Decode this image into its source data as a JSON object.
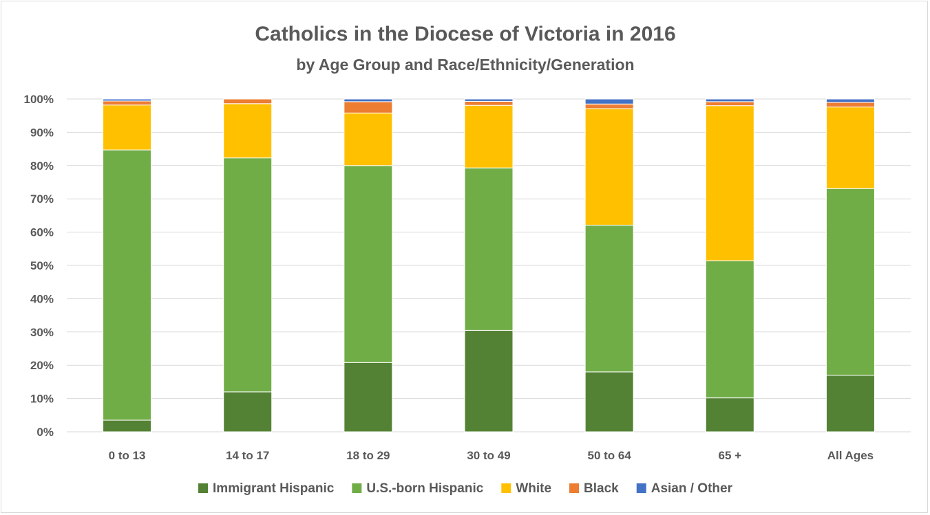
{
  "chart_data": {
    "type": "bar",
    "stacked": true,
    "title": "Catholics in the Diocese of Victoria in 2016",
    "subtitle": "by Age Group and Race/Ethnicity/Generation",
    "categories": [
      "0 to 13",
      "14 to 17",
      "18 to 29",
      "30 to 49",
      "50 to 64",
      "65 +",
      "All Ages"
    ],
    "ylim": [
      0,
      100
    ],
    "yticks": [
      "0%",
      "10%",
      "20%",
      "30%",
      "40%",
      "50%",
      "60%",
      "70%",
      "80%",
      "90%",
      "100%"
    ],
    "grid": true,
    "legend_position": "bottom",
    "series": [
      {
        "name": "Immigrant Hispanic",
        "color": "#548235",
        "values": [
          3.5,
          12,
          20.8,
          30.5,
          18,
          10.2,
          17
        ]
      },
      {
        "name": "U.S.-born Hispanic",
        "color": "#70ad47",
        "values": [
          81.2,
          70.3,
          59.2,
          48.8,
          44.1,
          41.2,
          56.1
        ]
      },
      {
        "name": "White",
        "color": "#ffc000",
        "values": [
          13.5,
          16.3,
          15.8,
          18.8,
          35,
          46.6,
          24.5
        ]
      },
      {
        "name": "Black",
        "color": "#ed7d31",
        "values": [
          1.2,
          1.4,
          3.4,
          1.2,
          1.4,
          1.2,
          1.4
        ]
      },
      {
        "name": "Asian / Other",
        "color": "#4472c4",
        "values": [
          0.6,
          0,
          0.8,
          0.7,
          1.5,
          0.8,
          1
        ]
      }
    ]
  },
  "colors": {
    "text": "#595959",
    "gridline": "#d9d9d9",
    "border": "#d9d9d9"
  }
}
